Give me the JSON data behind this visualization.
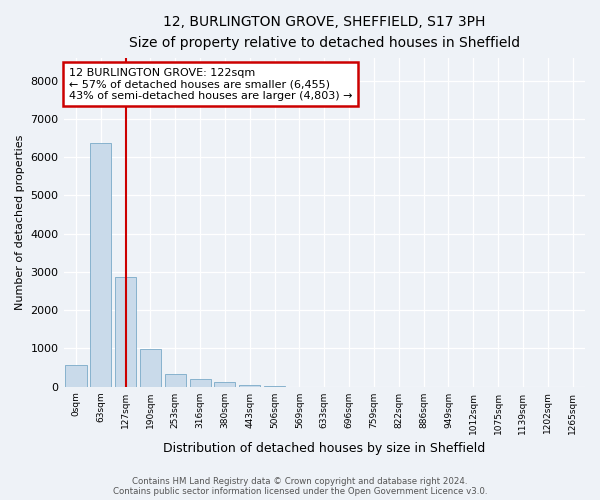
{
  "title": "12, BURLINGTON GROVE, SHEFFIELD, S17 3PH",
  "subtitle": "Size of property relative to detached houses in Sheffield",
  "xlabel": "Distribution of detached houses by size in Sheffield",
  "ylabel": "Number of detached properties",
  "bar_labels": [
    "0sqm",
    "63sqm",
    "127sqm",
    "190sqm",
    "253sqm",
    "316sqm",
    "380sqm",
    "443sqm",
    "506sqm",
    "569sqm",
    "633sqm",
    "696sqm",
    "759sqm",
    "822sqm",
    "886sqm",
    "949sqm",
    "1012sqm",
    "1075sqm",
    "1139sqm",
    "1202sqm",
    "1265sqm"
  ],
  "bar_values": [
    560,
    6380,
    2880,
    990,
    330,
    190,
    110,
    50,
    30,
    0,
    0,
    0,
    0,
    0,
    0,
    0,
    0,
    0,
    0,
    0,
    0
  ],
  "bar_color": "#c9daea",
  "bar_edge_color": "#7aaac8",
  "ylim": [
    0,
    8600
  ],
  "yticks": [
    0,
    1000,
    2000,
    3000,
    4000,
    5000,
    6000,
    7000,
    8000
  ],
  "vline_x": 2.0,
  "vline_color": "#cc0000",
  "annotation_title": "12 BURLINGTON GROVE: 122sqm",
  "annotation_line1": "← 57% of detached houses are smaller (6,455)",
  "annotation_line2": "43% of semi-detached houses are larger (4,803) →",
  "annotation_box_color": "#cc0000",
  "footer_line1": "Contains HM Land Registry data © Crown copyright and database right 2024.",
  "footer_line2": "Contains public sector information licensed under the Open Government Licence v3.0.",
  "bg_color": "#eef2f7",
  "plot_bg_color": "#eef2f7",
  "grid_color": "#ffffff"
}
